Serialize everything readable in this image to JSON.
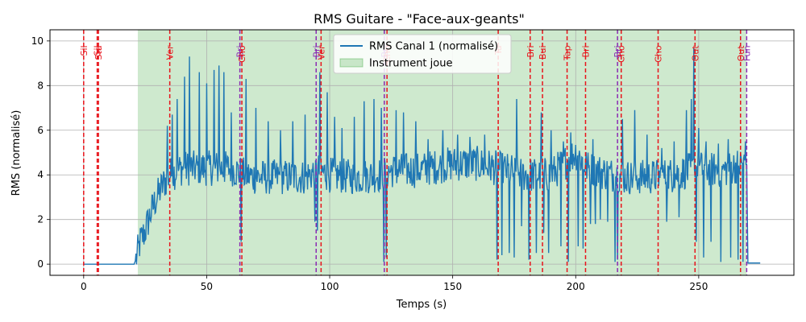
{
  "chart_data": {
    "type": "line",
    "title": "RMS Guitare - \"Face-aux-geants\"",
    "xlabel": "Temps (s)",
    "ylabel": "RMS (normalisé)",
    "xlim": [
      -13.7,
      288.7
    ],
    "ylim": [
      -0.5,
      10.5
    ],
    "xticks": [
      0,
      50,
      100,
      150,
      200,
      250
    ],
    "yticks": [
      0,
      2,
      4,
      6,
      8,
      10
    ],
    "grid": true,
    "legend_placement": "top-center",
    "colors": {
      "line": "#1f77b4",
      "shade": "#2ca02c",
      "marker_red": "#e8141b",
      "marker_purple": "#8b2cb3"
    },
    "legend": [
      {
        "label": "RMS Canal 1 (normalisé)",
        "kind": "line"
      },
      {
        "label": "Instrument joue",
        "kind": "patch"
      }
    ],
    "shaded_region": {
      "start": 22,
      "end": 269.5
    },
    "series": [
      {
        "name": "RMS Canal 1 (normalisé)",
        "envelope": [
          [
            0,
            0
          ],
          [
            20.5,
            0
          ],
          [
            21.5,
            0.3
          ],
          [
            23,
            1.0
          ],
          [
            25,
            1.5
          ],
          [
            27,
            2.2
          ],
          [
            29,
            2.8
          ],
          [
            31,
            3.3
          ],
          [
            33,
            3.7
          ],
          [
            35,
            4.0
          ],
          [
            40,
            4.3
          ],
          [
            50,
            4.3
          ],
          [
            60,
            4.3
          ],
          [
            65,
            4.0
          ],
          [
            70,
            3.9
          ],
          [
            80,
            3.9
          ],
          [
            90,
            3.9
          ],
          [
            95,
            4.2
          ],
          [
            100,
            4.0
          ],
          [
            110,
            3.9
          ],
          [
            120,
            4.0
          ],
          [
            125,
            4.2
          ],
          [
            135,
            4.2
          ],
          [
            150,
            4.5
          ],
          [
            160,
            4.5
          ],
          [
            168,
            4.3
          ],
          [
            180,
            4.0
          ],
          [
            190,
            4.0
          ],
          [
            195,
            4.5
          ],
          [
            200,
            5.0
          ],
          [
            205,
            4.3
          ],
          [
            215,
            4.0
          ],
          [
            220,
            3.9
          ],
          [
            230,
            3.9
          ],
          [
            240,
            4.0
          ],
          [
            250,
            4.3
          ],
          [
            260,
            4.2
          ],
          [
            268,
            4.5
          ],
          [
            269.5,
            4.5
          ],
          [
            270,
            0.05
          ],
          [
            275,
            0.05
          ]
        ],
        "spikes": [
          [
            34,
            6.2
          ],
          [
            36,
            6.7
          ],
          [
            38,
            7.4
          ],
          [
            41,
            8.4
          ],
          [
            43,
            9.3
          ],
          [
            47,
            8.6
          ],
          [
            50,
            8.1
          ],
          [
            53,
            8.7
          ],
          [
            55,
            8.9
          ],
          [
            57,
            8.6
          ],
          [
            60,
            6.8
          ],
          [
            64,
            10.0
          ],
          [
            66,
            8.3
          ],
          [
            70,
            7.0
          ],
          [
            75,
            6.4
          ],
          [
            80,
            6.0
          ],
          [
            85,
            6.4
          ],
          [
            90,
            6.7
          ],
          [
            94,
            6.1
          ],
          [
            96,
            8.6
          ],
          [
            99,
            7.7
          ],
          [
            102,
            6.6
          ],
          [
            105,
            6.1
          ],
          [
            110,
            6.6
          ],
          [
            114,
            7.3
          ],
          [
            118,
            7.4
          ],
          [
            121,
            7.0
          ],
          [
            123,
            9.0
          ],
          [
            127,
            6.9
          ],
          [
            130,
            6.8
          ],
          [
            135,
            6.4
          ],
          [
            140,
            5.6
          ],
          [
            146,
            6.0
          ],
          [
            152,
            5.8
          ],
          [
            157,
            5.7
          ],
          [
            163,
            5.8
          ],
          [
            168,
            6.7
          ],
          [
            173,
            7.7
          ],
          [
            176,
            7.4
          ],
          [
            181,
            6.6
          ],
          [
            186,
            6.8
          ],
          [
            190,
            6.0
          ],
          [
            195,
            5.5
          ],
          [
            198,
            5.9
          ],
          [
            203,
            5.3
          ],
          [
            207,
            5.6
          ],
          [
            213,
            5.9
          ],
          [
            216,
            6.2
          ],
          [
            219,
            6.5
          ],
          [
            224,
            6.9
          ],
          [
            229,
            5.8
          ],
          [
            235,
            5.2
          ],
          [
            240,
            5.5
          ],
          [
            245,
            6.9
          ],
          [
            247,
            7.4
          ],
          [
            248,
            9.7
          ],
          [
            250,
            6.1
          ],
          [
            253,
            5.5
          ],
          [
            258,
            5.4
          ],
          [
            262,
            5.6
          ],
          [
            266,
            5.4
          ],
          [
            269,
            5.5
          ]
        ],
        "dips": [
          [
            64,
            1.0
          ],
          [
            94,
            1.9
          ],
          [
            95,
            1.5
          ],
          [
            122,
            0.1
          ],
          [
            123,
            0.3
          ],
          [
            168,
            0.2
          ],
          [
            170,
            0.4
          ],
          [
            173,
            0.5
          ],
          [
            175,
            0.3
          ],
          [
            178,
            1.7
          ],
          [
            181,
            0.2
          ],
          [
            184,
            0.5
          ],
          [
            187,
            1.4
          ],
          [
            189,
            0.5
          ],
          [
            194,
            0.8
          ],
          [
            197,
            0.1
          ],
          [
            201,
            0.8
          ],
          [
            203,
            0.7
          ],
          [
            206,
            1.8
          ],
          [
            208,
            1.8
          ],
          [
            210,
            2.0
          ],
          [
            213,
            1.9
          ],
          [
            216,
            0.1
          ],
          [
            217,
            0.2
          ],
          [
            237,
            1.9
          ],
          [
            242,
            2.1
          ],
          [
            249,
            1.0
          ],
          [
            252,
            0.3
          ],
          [
            255,
            1.0
          ],
          [
            259,
            0.1
          ],
          [
            263,
            0.3
          ],
          [
            266,
            0.2
          ],
          [
            268,
            0.1
          ]
        ]
      }
    ],
    "markers": [
      {
        "x": 0,
        "label": "Sil",
        "color": "red"
      },
      {
        "x": 5.5,
        "label": "Sil",
        "color": "red"
      },
      {
        "x": 6.0,
        "label": "Sta",
        "color": "red"
      },
      {
        "x": 35,
        "label": "Ver",
        "color": "red"
      },
      {
        "x": 63.5,
        "label": "Bri",
        "color": "purple"
      },
      {
        "x": 64.3,
        "label": "Cho",
        "color": "red"
      },
      {
        "x": 94.5,
        "label": "Bri",
        "color": "purple"
      },
      {
        "x": 96.5,
        "label": "Ver",
        "color": "red"
      },
      {
        "x": 122.2,
        "label": "Bri",
        "color": "purple"
      },
      {
        "x": 123.3,
        "label": "Cho",
        "color": "red"
      },
      {
        "x": 168.5,
        "label": "Ta",
        "color": "red"
      },
      {
        "x": 181.5,
        "label": "Bri",
        "color": "red"
      },
      {
        "x": 186.5,
        "label": "Bui",
        "color": "red"
      },
      {
        "x": 196.5,
        "label": "Tap",
        "color": "red"
      },
      {
        "x": 204,
        "label": "Bri",
        "color": "red"
      },
      {
        "x": 217,
        "label": "Bri",
        "color": "purple"
      },
      {
        "x": 218.5,
        "label": "Cho",
        "color": "red"
      },
      {
        "x": 233.5,
        "label": "Cho",
        "color": "red"
      },
      {
        "x": 248.5,
        "label": "Out",
        "color": "red"
      },
      {
        "x": 267,
        "label": "Out",
        "color": "red"
      },
      {
        "x": 269.5,
        "label": "Fun",
        "color": "purple"
      }
    ]
  }
}
